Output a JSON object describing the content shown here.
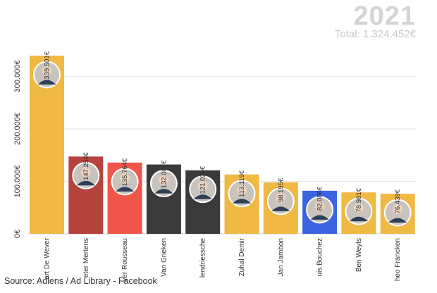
{
  "header": {
    "year": "2021",
    "total": "Total: 1.324.452€"
  },
  "source": "Source: Adlens / Ad Library - Facebook",
  "chart_data": {
    "type": "bar",
    "categories": [
      "art De Wever",
      "eter Mertens",
      "ver Rousseau",
      "Van Grieken",
      "lendriessche",
      "Zuhal Demir",
      "Jan Jambon",
      "uis Bouchez",
      "Ben Weyts",
      "heo Francken"
    ],
    "values": [
      339501,
      147254,
      135764,
      132087,
      121026,
      113119,
      98195,
      82086,
      78981,
      76439
    ],
    "value_labels": [
      "339.501€",
      "147.254€",
      "135.764€",
      "132.087€",
      "121.026€",
      "113.119€",
      "98.195€",
      "82.086€",
      "78.981€",
      "76.439€"
    ],
    "colors": [
      "#f0b944",
      "#b5433d",
      "#ef5549",
      "#3a3a3a",
      "#3a3a3a",
      "#f0b944",
      "#f0b944",
      "#3c63e0",
      "#f0b944",
      "#f0b944"
    ],
    "yticks": [
      0,
      100000,
      200000,
      300000
    ],
    "ytick_labels": [
      "0€",
      "100.000€",
      "200.000€",
      "300.000€"
    ],
    "ylim": [
      0,
      340000
    ],
    "grid": true,
    "title": "",
    "xlabel": "",
    "ylabel": ""
  }
}
